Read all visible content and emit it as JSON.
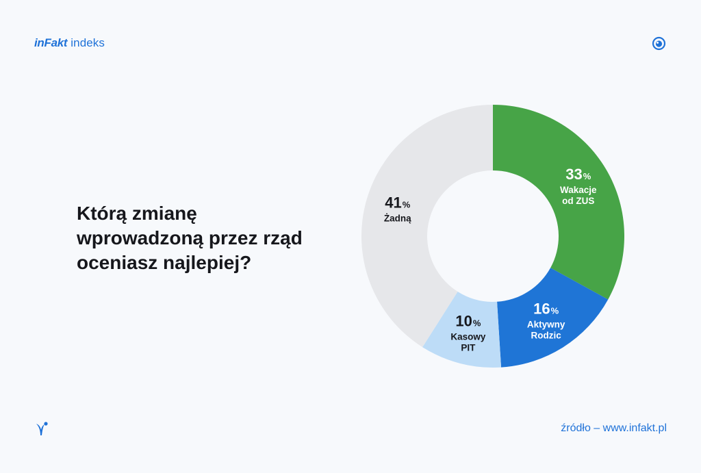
{
  "header": {
    "logo_text": "inFakt",
    "brand_suffix": "indeks",
    "eye_icon": "eye-icon"
  },
  "question": {
    "lines": [
      "Którą zmianę",
      "wprowadzoną przez rząd",
      "oceniasz najlepiej?"
    ]
  },
  "footer": {
    "bird_icon": "bird-icon",
    "source": "źródło – www.infakt.pl"
  },
  "colors": {
    "brand": "#1f72d8",
    "green": "#47a447",
    "blue": "#1f75d6",
    "light_blue": "#bddcf7",
    "gray": "#e6e7ea",
    "background": "#f7f9fc"
  },
  "chart_data": {
    "type": "pie",
    "donut": true,
    "start": "top, clockwise",
    "unit": "%",
    "slices": [
      {
        "value": 33,
        "label_lines": [
          "Wakacje",
          "od ZUS"
        ],
        "color": "#47a447",
        "text_color": "#ffffff"
      },
      {
        "value": 16,
        "label_lines": [
          "Aktywny",
          "Rodzic"
        ],
        "color": "#1f75d6",
        "text_color": "#ffffff"
      },
      {
        "value": 10,
        "label_lines": [
          "Kasowy",
          "PIT"
        ],
        "color": "#bddcf7",
        "text_color": "#16171c"
      },
      {
        "value": 41,
        "label_lines": [
          "Żadną"
        ],
        "color": "#e6e7ea",
        "text_color": "#16171c"
      }
    ]
  }
}
